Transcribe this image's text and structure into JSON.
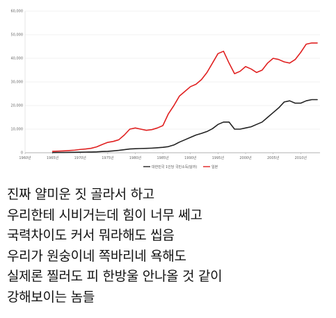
{
  "chart_data": {
    "type": "line",
    "x": [
      1965,
      1966,
      1967,
      1968,
      1969,
      1970,
      1971,
      1972,
      1973,
      1974,
      1975,
      1976,
      1977,
      1978,
      1979,
      1980,
      1981,
      1982,
      1983,
      1984,
      1985,
      1986,
      1987,
      1988,
      1989,
      1990,
      1991,
      1992,
      1993,
      1994,
      1995,
      1996,
      1997,
      1998,
      1999,
      2000,
      2001,
      2002,
      2003,
      2004,
      2005,
      2006,
      2007,
      2008,
      2009,
      2010,
      2011,
      2012,
      2013
    ],
    "series": [
      {
        "name": "대한민국 1인당 국민소득(달러)",
        "color": "#222222",
        "values": [
          100,
          120,
          140,
          170,
          210,
          250,
          290,
          320,
          400,
          540,
          600,
          800,
          1000,
          1300,
          1600,
          1700,
          1800,
          1850,
          1950,
          2100,
          2300,
          2600,
          3300,
          4500,
          5500,
          6500,
          7500,
          8200,
          9000,
          10200,
          12000,
          13000,
          13000,
          10000,
          10000,
          10500,
          11000,
          12000,
          13000,
          15000,
          17000,
          19000,
          21500,
          22000,
          21000,
          21000,
          22000,
          22500,
          22500
        ]
      },
      {
        "name": "일본",
        "color": "#e02020",
        "values": [
          600,
          700,
          800,
          950,
          1100,
          1400,
          1600,
          1900,
          2500,
          3500,
          4400,
          4800,
          5500,
          7500,
          10000,
          10500,
          10000,
          9500,
          9800,
          10500,
          11500,
          16500,
          20000,
          24000,
          26000,
          28000,
          29000,
          31000,
          34000,
          38000,
          42000,
          43000,
          38000,
          33500,
          34500,
          36500,
          35500,
          34000,
          35000,
          38000,
          40000,
          39500,
          38500,
          38000,
          39500,
          42500,
          46000,
          46500,
          46500
        ]
      }
    ],
    "y_ticks": [
      "0",
      "10,000",
      "20,000",
      "30,000",
      "40,000",
      "50,000",
      "60,000"
    ],
    "x_ticks": [
      "1960년",
      "1965년",
      "1970년",
      "1975년",
      "1980년",
      "1985년",
      "1990년",
      "1995년",
      "2000년",
      "2005년",
      "2010년"
    ],
    "x_tick_values": [
      1960,
      1965,
      1970,
      1975,
      1980,
      1985,
      1990,
      1995,
      2000,
      2005,
      2010
    ],
    "xlim": [
      1960,
      2013.5
    ],
    "ylim": [
      0,
      60000
    ],
    "grid": true,
    "legend": "bottom-center",
    "xlabel": "",
    "ylabel": "",
    "title": ""
  },
  "caption": {
    "lines": [
      "진짜 얄미운 짓 골라서 하고",
      "우리한테 시비거는데 힘이 너무 쎄고",
      "국력차이도 커서 뭐라해도 씹음",
      "우리가 원숭이네 쪽바리네 욕해도",
      "실제론 찔러도 피 한방울 안나올 것 같이",
      "강해보이는 놈들"
    ]
  }
}
